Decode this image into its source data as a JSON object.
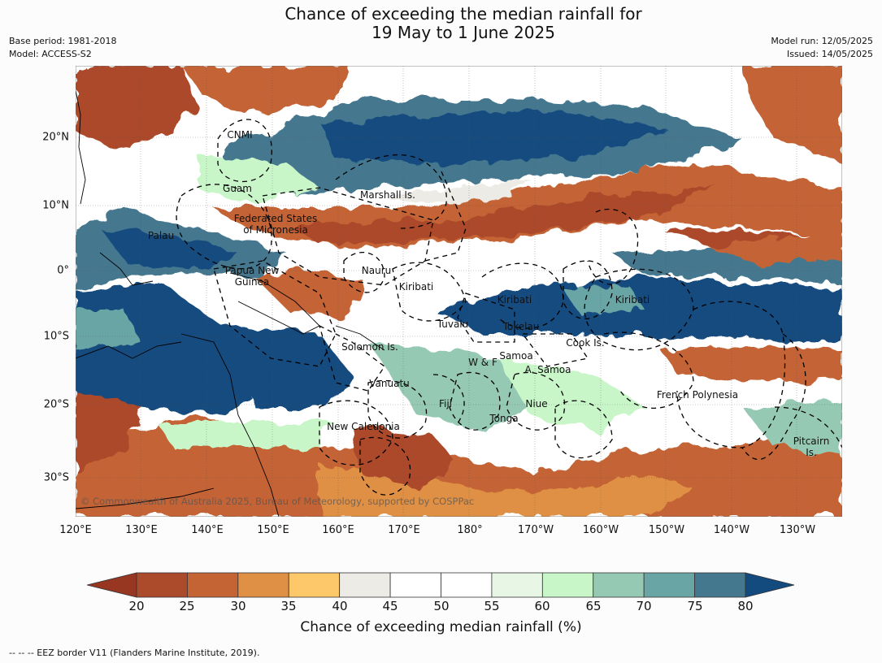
{
  "title_line1": "Chance of exceeding the median rainfall for",
  "title_line2": "19 May to 1 June 2025",
  "base_period": "Base period: 1981-2018",
  "model": "Model: ACCESS-S2",
  "model_run": "Model run: 12/05/2025",
  "issued": "Issued: 14/05/2025",
  "lon_labels": [
    "120°E",
    "130°E",
    "140°E",
    "150°E",
    "160°E",
    "170°E",
    "180°",
    "170°W",
    "160°W",
    "150°W",
    "140°W",
    "130°W"
  ],
  "lat_labels": [
    "20°N",
    "10°N",
    "0°",
    "10°S",
    "20°S",
    "30°S"
  ],
  "regions": {
    "cnmi": "CNMI",
    "guam": "Guam",
    "marshall": "Marshall Is.",
    "fsm_1": "Federated States",
    "fsm_2": "of Micronesia",
    "palau": "Palau",
    "png_1": "Papua New",
    "png_2": "Guinea",
    "nauru": "Nauru",
    "kiribati_w": "Kiribati",
    "kiribati_c": "Kiribati",
    "kiribati_e": "Kiribati",
    "tuvalu": "Tuvalu",
    "tokelau": "Tokelau",
    "cook": "Cook Is.",
    "solomon": "Solomon Is.",
    "wf": "W & F",
    "samoa": "Samoa",
    "asamoa": "A. Samoa",
    "vanuatu": "Vanuatu",
    "fiji": "Fiji",
    "niue": "Niue",
    "frpoly": "French Polynesia",
    "tonga": "Tonga",
    "newcal": "New Caledonia",
    "pitcairn_1": "Pitcairn",
    "pitcairn_2": "Is."
  },
  "copyright": "© Commonwealth of Australia 2025, Bureau of Meteorology, supported by COSPPac",
  "colorbar": {
    "ticks": [
      "20",
      "25",
      "30",
      "35",
      "40",
      "45",
      "50",
      "55",
      "60",
      "65",
      "70",
      "75",
      "80"
    ],
    "colors": [
      "#ac4a2c",
      "#c46434",
      "#df9045",
      "#fcc86a",
      "#ecebe6",
      "#ffffff",
      "#ffffff",
      "#e8f6e6",
      "#c9f6c8",
      "#96c9b4",
      "#6aa5a6",
      "#44788f"
    ],
    "low_extend_color": "#973621",
    "high_extend_color": "#144b7f",
    "label": "Chance of exceeding median rainfall (%)"
  },
  "footnote": "--  --  -- EEZ border V11 (Flanders Marine Institute, 2019)."
}
